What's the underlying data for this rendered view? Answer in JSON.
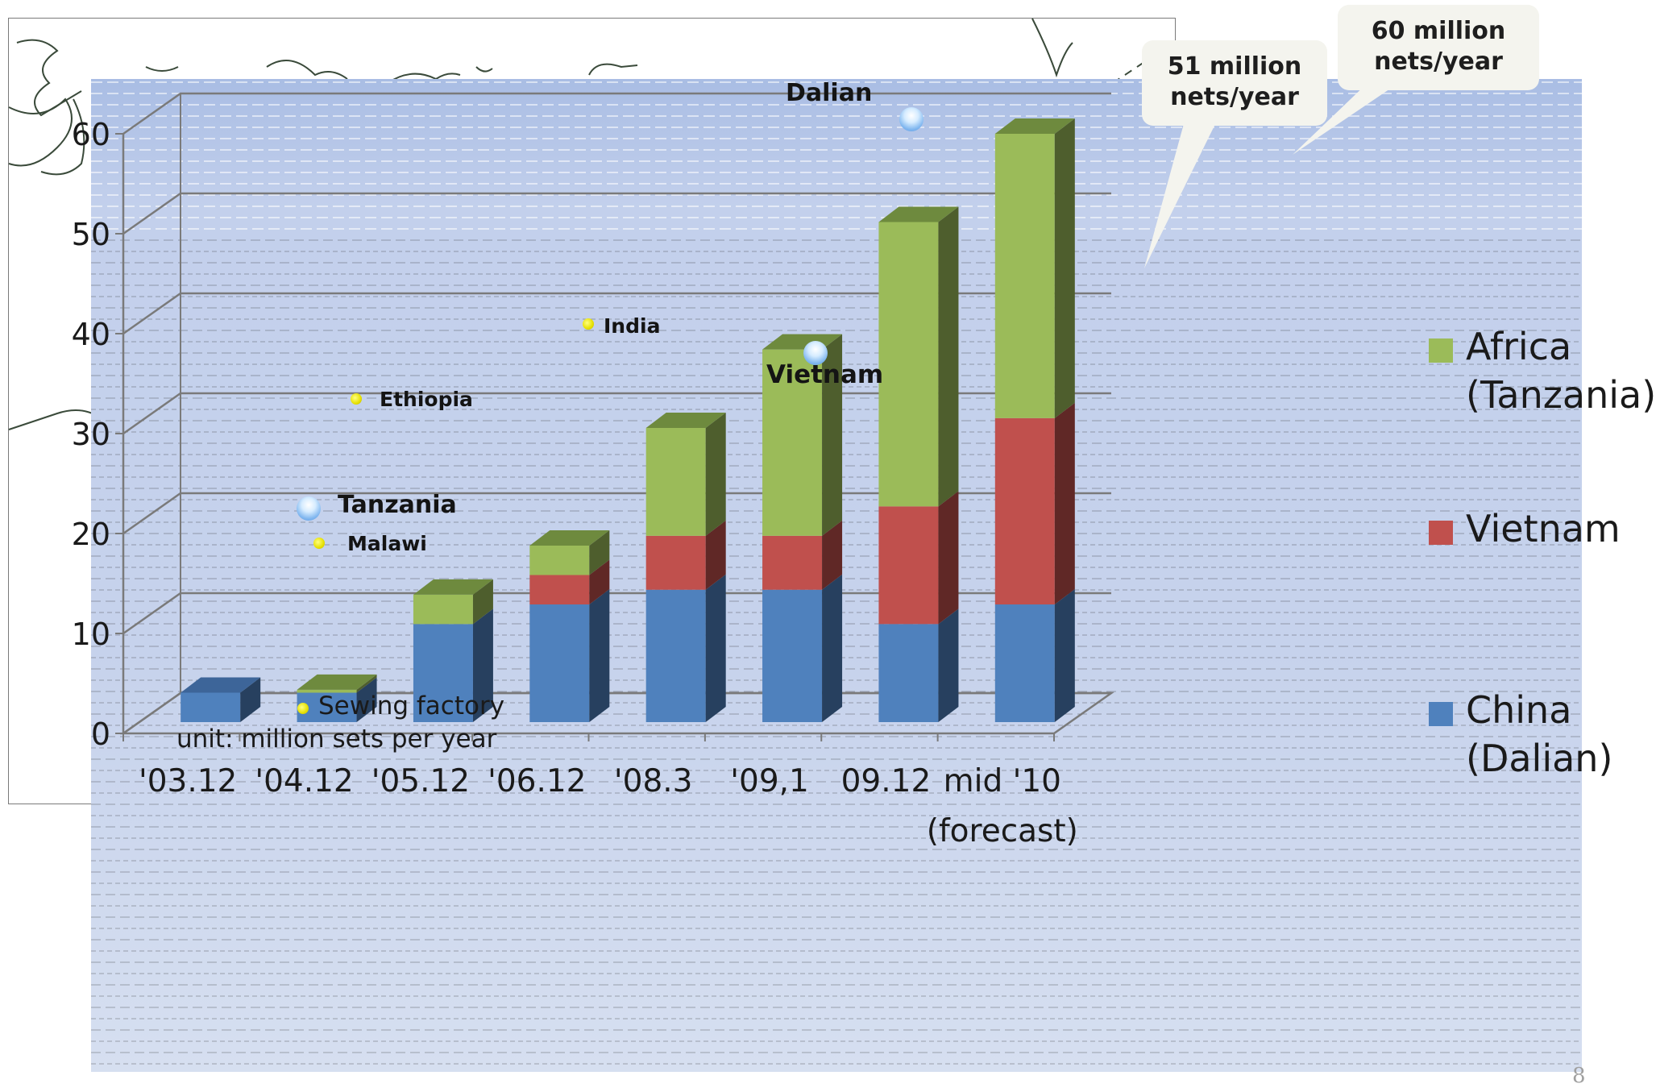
{
  "chart_data": {
    "type": "bar",
    "stacked": true,
    "three_d": true,
    "categories": [
      "'03.12",
      "'04.12",
      "'05.12",
      "'06.12",
      "'08.3",
      "'09,1",
      "09.12",
      "mid '10\n(forecast)"
    ],
    "series": [
      {
        "name": "China\n(Dalian)",
        "values": [
          3,
          3,
          10,
          12,
          13.5,
          13.5,
          10,
          12
        ],
        "color": "#4f81bd",
        "side": "#27405f",
        "top": "#3d6599"
      },
      {
        "name": "Vietnam",
        "values": [
          0,
          0,
          0,
          3,
          5.5,
          5.5,
          12,
          19
        ],
        "color": "#c0504d",
        "side": "#602826",
        "top": "#9a3d3b"
      },
      {
        "name": "Africa\n(Tanzania)",
        "values": [
          0,
          0.3,
          3,
          3,
          11,
          19,
          29,
          29
        ],
        "color": "#9bbb59",
        "side": "#4e5e2d",
        "top": "#6e8a3e"
      }
    ],
    "yticks": [
      0,
      10,
      20,
      30,
      40,
      50,
      60
    ],
    "ylim": [
      0,
      60
    ],
    "grid": true,
    "legend_position": "right",
    "unit_note": "unit: million sets per year",
    "annotations": [
      {
        "text": "51 million\nnets/year",
        "category": "09.12"
      },
      {
        "text": "60 million\nnets/year",
        "category": "mid '10\n(forecast)"
      }
    ]
  },
  "map_labels": {
    "dalian": "Dalian",
    "india": "India",
    "vietnam": "Vietnam",
    "ethiopia": "Ethiopia",
    "tanzania": "Tanzania",
    "malawi": "Malawi",
    "sewing_factory": "Sewing factory"
  },
  "callouts": {
    "c51_line1": "51 million",
    "c51_line2": "nets/year",
    "c60_line1": "60 million",
    "c60_line2": "nets/year"
  },
  "legend": {
    "africa_line1": "Africa",
    "africa_line2": "(Tanzania)",
    "vietnam": "Vietnam",
    "china_line1": "China",
    "china_line2": "(Dalian)"
  },
  "page_number": "8",
  "colors": {
    "china": "#4f81bd",
    "vietnam": "#c0504d",
    "africa": "#9bbb59"
  }
}
